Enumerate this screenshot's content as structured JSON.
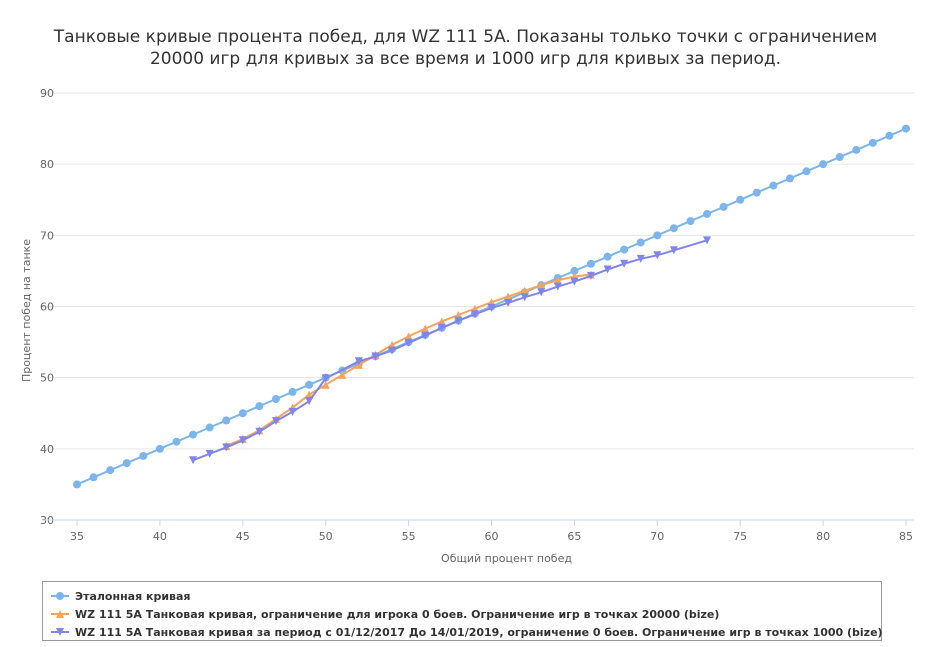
{
  "title": {
    "line1": "Танковые кривые процента побед, для WZ 111 5A. Показаны только точки с ограничением",
    "line2": "20000 игр для кривых за все время и 1000 игр для кривых за период."
  },
  "colors": {
    "reference": "#7cb5ec",
    "tank_all_time": "#f7a35c",
    "tank_period": "#8085e9",
    "grid": "#e6e6e6",
    "axis_line": "#ccd6eb"
  },
  "chart_data": {
    "type": "line",
    "xlabel": "Общий процент побед",
    "ylabel": "Процент побед на танке",
    "xlim": [
      35,
      85
    ],
    "ylim": [
      30,
      90
    ],
    "x_ticks": [
      "35",
      "40",
      "45",
      "50",
      "55",
      "60",
      "65",
      "70",
      "75",
      "80",
      "85"
    ],
    "y_ticks": [
      "30",
      "40",
      "50",
      "60",
      "70",
      "80",
      "90"
    ],
    "grid": true,
    "legend_position": "bottom",
    "series": [
      {
        "name": "Эталонная кривая",
        "marker": "circle",
        "x": [
          35,
          36,
          37,
          38,
          39,
          40,
          41,
          42,
          43,
          44,
          45,
          46,
          47,
          48,
          49,
          50,
          51,
          52,
          53,
          54,
          55,
          56,
          57,
          58,
          59,
          60,
          61,
          62,
          63,
          64,
          65,
          66,
          67,
          68,
          69,
          70,
          71,
          72,
          73,
          74,
          75,
          76,
          77,
          78,
          79,
          80,
          81,
          82,
          83,
          84,
          85
        ],
        "y": [
          35,
          36,
          37,
          38,
          39,
          40,
          41,
          42,
          43,
          44,
          45,
          46,
          47,
          48,
          49,
          50,
          51,
          52,
          53,
          54,
          55,
          56,
          57,
          58,
          59,
          60,
          61,
          62,
          63,
          64,
          65,
          66,
          67,
          68,
          69,
          70,
          71,
          72,
          73,
          74,
          75,
          76,
          77,
          78,
          79,
          80,
          81,
          82,
          83,
          84,
          85
        ]
      },
      {
        "name": "WZ 111 5A Танковая кривая, ограничение для игрока 0 боев. Ограничение игр в точках 20000 (bize)",
        "marker": "triangle",
        "x": [
          44,
          45,
          46,
          47,
          48,
          49,
          50,
          51,
          52,
          53,
          54,
          55,
          56,
          57,
          58,
          59,
          60,
          61,
          62,
          63,
          64,
          65,
          66
        ],
        "y": [
          40.4,
          41.4,
          42.6,
          44.2,
          45.8,
          47.6,
          49.0,
          50.4,
          51.8,
          53.2,
          54.6,
          55.8,
          56.9,
          57.9,
          58.8,
          59.7,
          60.6,
          61.4,
          62.2,
          63.0,
          63.7,
          64.2,
          64.5
        ]
      },
      {
        "name": "WZ 111 5A Танковая кривая за период с 01/12/2017 До 14/01/2019, ограничение 0 боев. Ограничение игр в точках 1000 (bize)",
        "marker": "triangle-down",
        "x": [
          42,
          43,
          44,
          45,
          46,
          47,
          48,
          49,
          50,
          52,
          53,
          54,
          55,
          56,
          57,
          58,
          59,
          60,
          61,
          62,
          63,
          64,
          65,
          66,
          67,
          68,
          69,
          70,
          71,
          73
        ],
        "y": [
          38.4,
          39.3,
          40.2,
          41.2,
          42.4,
          43.9,
          45.2,
          46.7,
          49.9,
          52.3,
          53.0,
          53.8,
          54.9,
          55.9,
          57.0,
          58.0,
          58.9,
          59.8,
          60.5,
          61.3,
          62.0,
          62.8,
          63.5,
          64.3,
          65.2,
          66.0,
          66.7,
          67.2,
          67.9,
          69.3
        ]
      }
    ]
  }
}
